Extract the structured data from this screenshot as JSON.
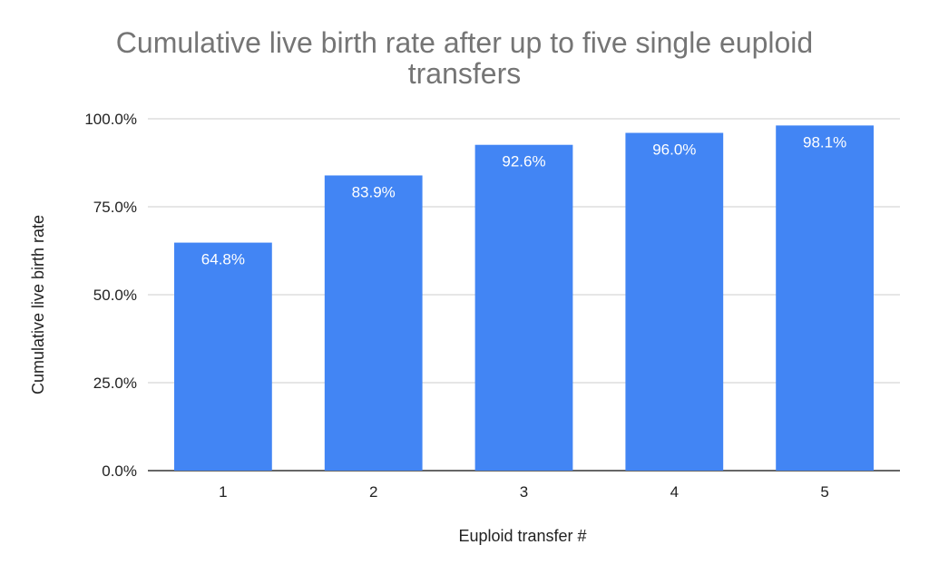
{
  "chart_data": {
    "type": "bar",
    "title": "Cumulative live birth rate after up to five single euploid transfers",
    "xlabel": "Euploid transfer #",
    "ylabel": "Cumulative live birth rate",
    "categories": [
      "1",
      "2",
      "3",
      "4",
      "5"
    ],
    "values": [
      64.8,
      83.9,
      92.6,
      96.0,
      98.1
    ],
    "value_labels": [
      "64.8%",
      "83.9%",
      "92.6%",
      "96.0%",
      "98.1%"
    ],
    "ylim": [
      0,
      100
    ],
    "yticks": [
      0,
      25,
      50,
      75,
      100
    ],
    "ytick_labels": [
      "0.0%",
      "25.0%",
      "50.0%",
      "75.0%",
      "100.0%"
    ],
    "grid": true,
    "legend": "none",
    "bar_color": "#4285f4",
    "label_color": "#ffffff",
    "grid_color": "#cccccc",
    "axis_color": "#333333"
  }
}
